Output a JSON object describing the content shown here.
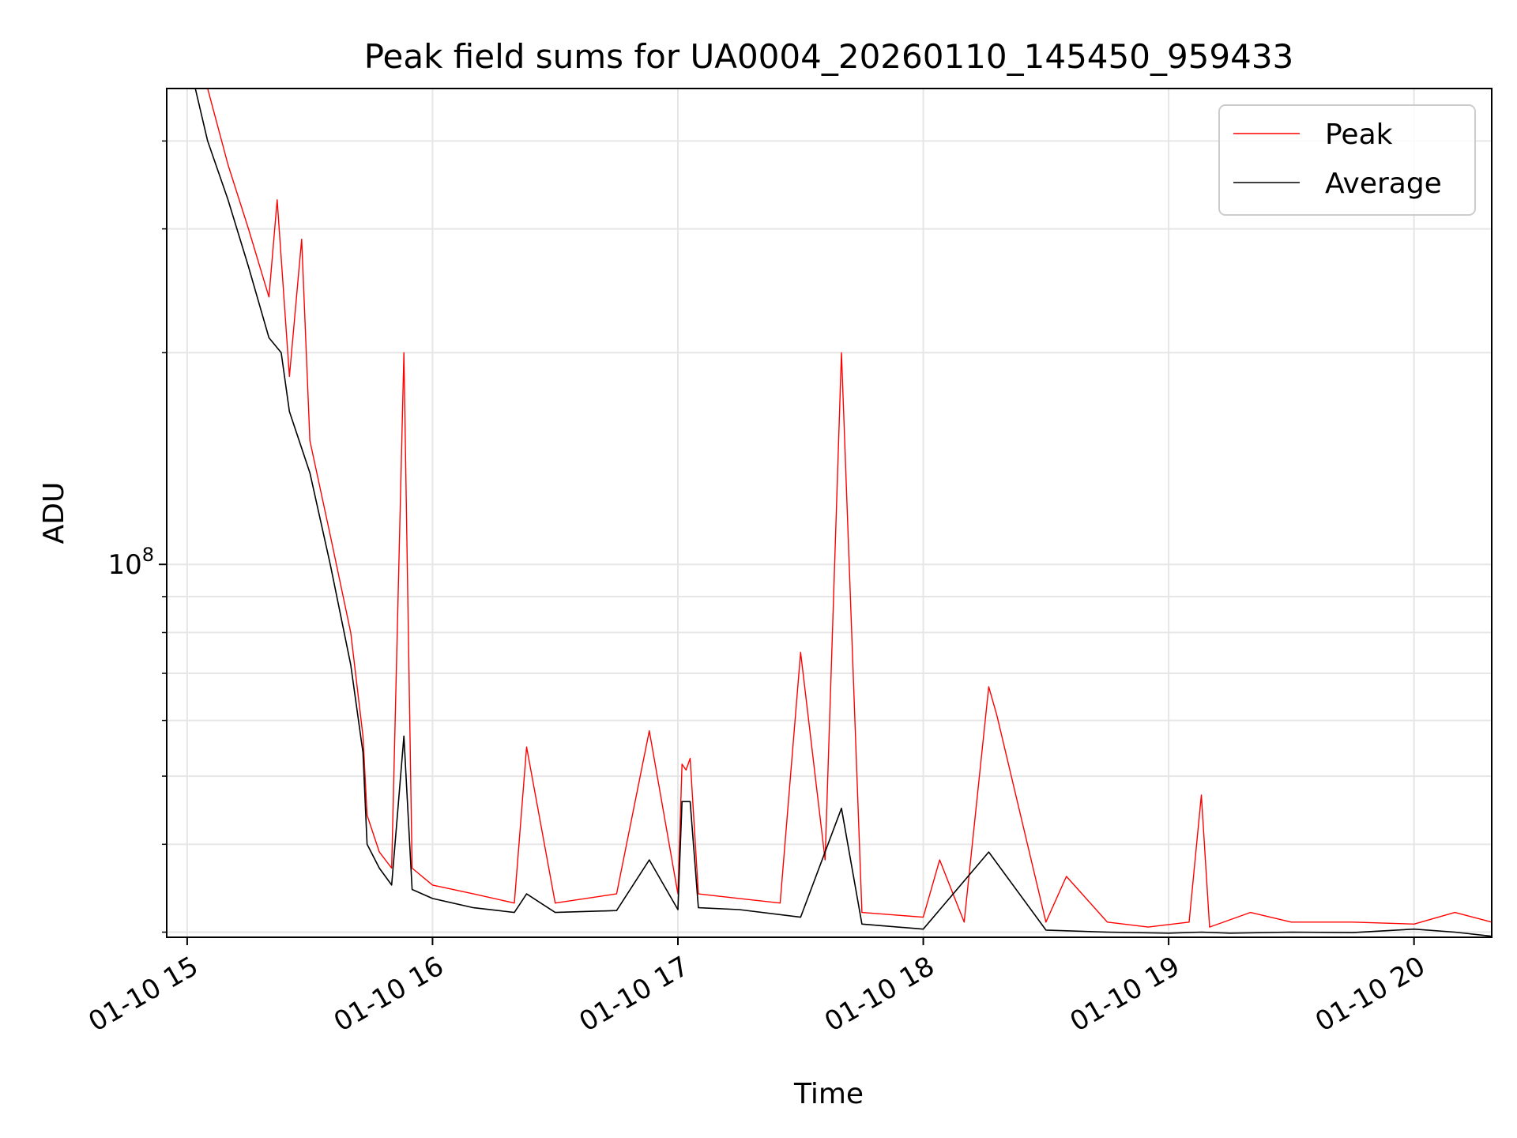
{
  "chart_data": {
    "type": "line",
    "title": "Peak field sums for UA0004_20260110_145450_959433",
    "xlabel": "Time",
    "ylabel": "ADU",
    "y_scale": "log",
    "grid": true,
    "legend_position": "top-right",
    "x_tick_labels": [
      "01-10 15",
      "01-10 16",
      "01-10 17",
      "01-10 18",
      "01-10 19",
      "01-10 20"
    ],
    "x_ticks": [
      "2026-01-10 15:00",
      "2026-01-10 16:00",
      "2026-01-10 17:00",
      "2026-01-10 18:00",
      "2026-01-10 19:00",
      "2026-01-10 20:00"
    ],
    "y_major_tick_labels": [
      {
        "base": "10",
        "exp": "8"
      }
    ],
    "y_major_ticks": [
      100000000
    ],
    "y_minor_ticks": [
      30000000,
      40000000,
      50000000,
      60000000,
      70000000,
      80000000,
      90000000,
      200000000,
      300000000,
      400000000
    ],
    "xlim": [
      "2026-01-10 14:55",
      "2026-01-10 20:19"
    ],
    "ylim": [
      29500000,
      475000000
    ],
    "series": [
      {
        "name": "Peak",
        "color": "#ff0000",
        "x": [
          "2026-01-10 15:05",
          "2026-01-10 15:10",
          "2026-01-10 15:15",
          "2026-01-10 15:20",
          "2026-01-10 15:22",
          "2026-01-10 15:25",
          "2026-01-10 15:28",
          "2026-01-10 15:30",
          "2026-01-10 15:35",
          "2026-01-10 15:40",
          "2026-01-10 15:43",
          "2026-01-10 15:44",
          "2026-01-10 15:47",
          "2026-01-10 15:50",
          "2026-01-10 15:53",
          "2026-01-10 15:55",
          "2026-01-10 16:00",
          "2026-01-10 16:10",
          "2026-01-10 16:20",
          "2026-01-10 16:23",
          "2026-01-10 16:30",
          "2026-01-10 16:45",
          "2026-01-10 16:53",
          "2026-01-10 17:00",
          "2026-01-10 17:01",
          "2026-01-10 17:02",
          "2026-01-10 17:03",
          "2026-01-10 17:05",
          "2026-01-10 17:15",
          "2026-01-10 17:25",
          "2026-01-10 17:30",
          "2026-01-10 17:36",
          "2026-01-10 17:40",
          "2026-01-10 17:45",
          "2026-01-10 18:00",
          "2026-01-10 18:04",
          "2026-01-10 18:10",
          "2026-01-10 18:16",
          "2026-01-10 18:18",
          "2026-01-10 18:30",
          "2026-01-10 18:35",
          "2026-01-10 18:45",
          "2026-01-10 18:55",
          "2026-01-10 19:05",
          "2026-01-10 19:08",
          "2026-01-10 19:10",
          "2026-01-10 19:20",
          "2026-01-10 19:30",
          "2026-01-10 19:45",
          "2026-01-10 20:00",
          "2026-01-10 20:10",
          "2026-01-10 20:19"
        ],
        "y": [
          475000000,
          370000000,
          300000000,
          240000000,
          330000000,
          185000000,
          290000000,
          150000000,
          110000000,
          80000000,
          57000000,
          44000000,
          39000000,
          37000000,
          200000000,
          37000000,
          35000000,
          34000000,
          33000000,
          55000000,
          33000000,
          34000000,
          58000000,
          34000000,
          52000000,
          51000000,
          53000000,
          34000000,
          33500000,
          33000000,
          75000000,
          38000000,
          200000000,
          32000000,
          31500000,
          38000000,
          31000000,
          67000000,
          61000000,
          31000000,
          36000000,
          31000000,
          30500000,
          31000000,
          47000000,
          30500000,
          32000000,
          31000000,
          31000000,
          30800000,
          32000000,
          31000000
        ]
      },
      {
        "name": "Average",
        "color": "#000000",
        "x": [
          "2026-01-10 14:59",
          "2026-01-10 15:02",
          "2026-01-10 15:05",
          "2026-01-10 15:10",
          "2026-01-10 15:15",
          "2026-01-10 15:20",
          "2026-01-10 15:23",
          "2026-01-10 15:25",
          "2026-01-10 15:30",
          "2026-01-10 15:35",
          "2026-01-10 15:40",
          "2026-01-10 15:43",
          "2026-01-10 15:44",
          "2026-01-10 15:47",
          "2026-01-10 15:50",
          "2026-01-10 15:53",
          "2026-01-10 15:55",
          "2026-01-10 16:00",
          "2026-01-10 16:10",
          "2026-01-10 16:20",
          "2026-01-10 16:23",
          "2026-01-10 16:30",
          "2026-01-10 16:45",
          "2026-01-10 16:53",
          "2026-01-10 17:00",
          "2026-01-10 17:01",
          "2026-01-10 17:03",
          "2026-01-10 17:05",
          "2026-01-10 17:15",
          "2026-01-10 17:30",
          "2026-01-10 17:40",
          "2026-01-10 17:45",
          "2026-01-10 18:00",
          "2026-01-10 18:16",
          "2026-01-10 18:30",
          "2026-01-10 18:45",
          "2026-01-10 19:00",
          "2026-01-10 19:08",
          "2026-01-10 19:15",
          "2026-01-10 19:30",
          "2026-01-10 19:45",
          "2026-01-10 20:00",
          "2026-01-10 20:10",
          "2026-01-10 20:19"
        ],
        "y": [
          475000000,
          475000000,
          400000000,
          330000000,
          265000000,
          210000000,
          200000000,
          165000000,
          135000000,
          100000000,
          72000000,
          54000000,
          40000000,
          37000000,
          35000000,
          57000000,
          34500000,
          33500000,
          32500000,
          32000000,
          34000000,
          32000000,
          32200000,
          38000000,
          32300000,
          46000000,
          46000000,
          32500000,
          32300000,
          31500000,
          45000000,
          30800000,
          30300000,
          39000000,
          30200000,
          30000000,
          29900000,
          30000000,
          29900000,
          30000000,
          29950000,
          30300000,
          30000000,
          29600000
        ]
      }
    ]
  }
}
